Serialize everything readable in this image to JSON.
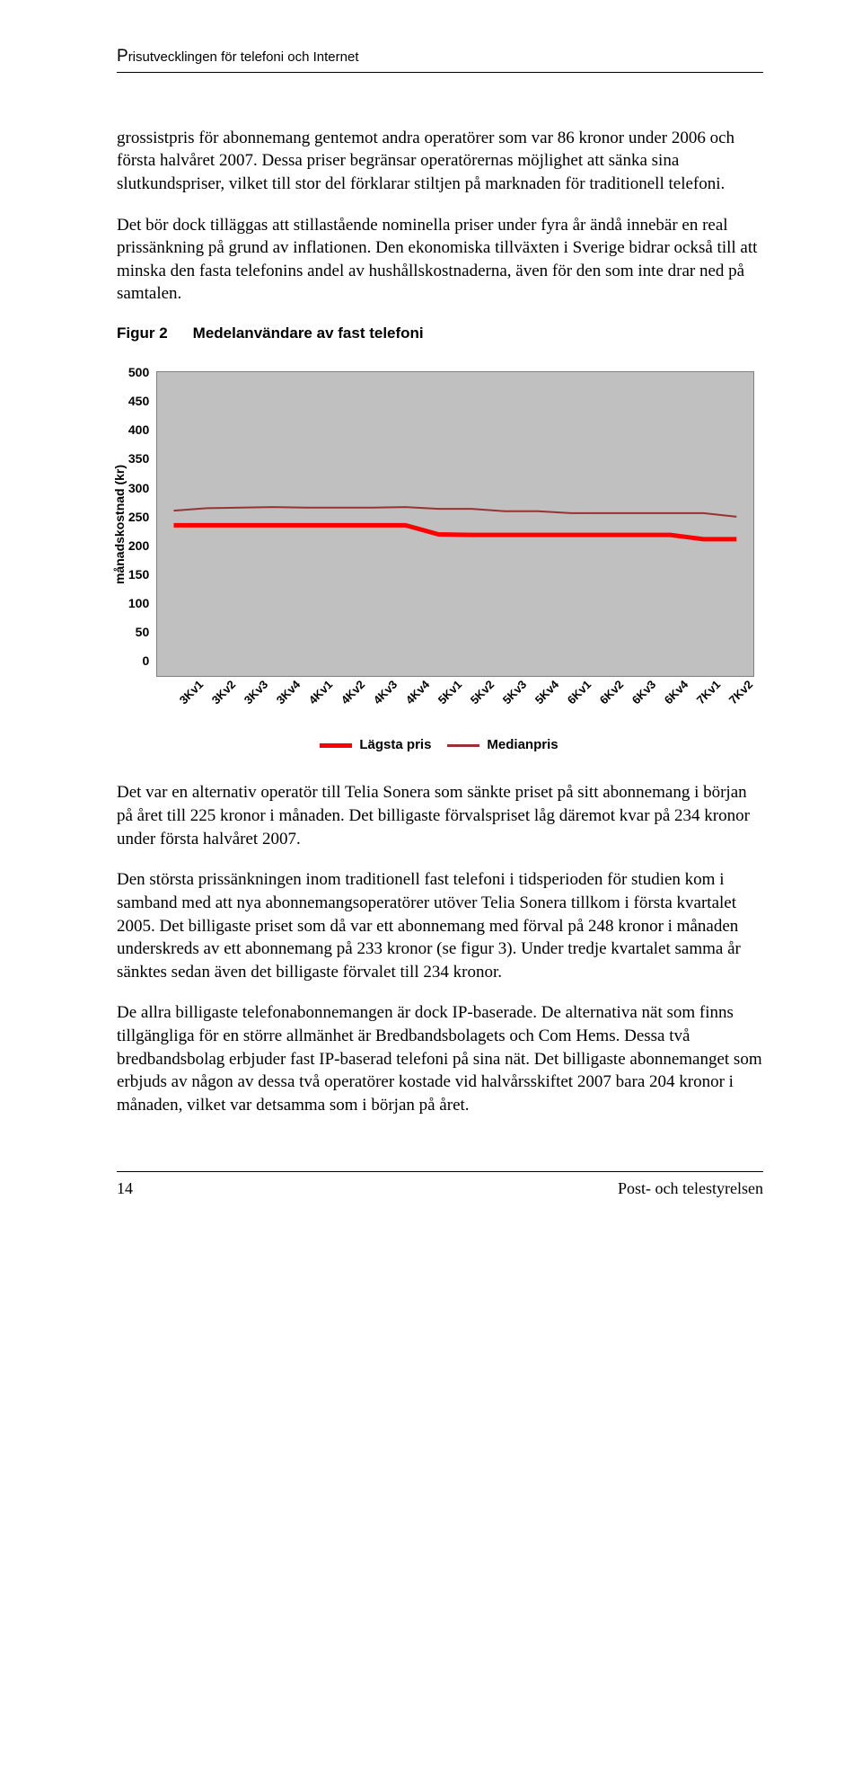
{
  "header": {
    "title_cap": "P",
    "title_rest": "risutvecklingen för telefoni och Internet"
  },
  "paragraphs": {
    "p1": "grossistpris för abonnemang gentemot andra operatörer som var 86 kronor under 2006 och första halvåret 2007. Dessa priser begränsar operatörernas möjlighet att sänka sina slutkundspriser, vilket till stor del förklarar stiltjen på marknaden för traditionell telefoni.",
    "p2": "Det bör dock tilläggas att stillastående nominella priser under fyra år ändå innebär en real prissänkning på grund av inflationen. Den ekonomiska tillväxten i Sverige bidrar också till att minska den fasta telefonins andel av hushållskostnaderna, även för den som inte drar ned på samtalen.",
    "p3": "Det var en alternativ operatör till Telia Sonera som sänkte priset på sitt abonnemang i början på året till 225 kronor i månaden. Det billigaste förvalspriset låg däremot kvar på 234 kronor under första halvåret 2007.",
    "p4": "Den största prissänkningen inom traditionell fast telefoni i tidsperioden för studien kom i samband med att nya abonnemangsoperatörer utöver Telia Sonera tillkom i första kvartalet 2005. Det billigaste priset som då var ett abonnemang med förval på 248 kronor i månaden underskreds av ett abonnemang på 233 kronor (se figur 3). Under tredje kvartalet samma år sänktes sedan även det billigaste förvalet till 234 kronor.",
    "p5": "De allra billigaste telefonabonnemangen är dock IP-baserade. De alternativa nät som finns tillgängliga för en större allmänhet är Bredbandsbolagets och Com Hems. Dessa två bredbandsbolag erbjuder fast IP-baserad telefoni på sina nät. Det billigaste abonnemanget som erbjuds av någon av dessa två operatörer kostade vid halvårsskiftet 2007 bara 204 kronor i månaden, vilket var detsamma som i början på året."
  },
  "figure": {
    "label": "Figur 2",
    "title": "Medelanvändare av fast telefoni"
  },
  "chart": {
    "type": "line",
    "background_color": "#c0c0c0",
    "plot_border_color": "#808080",
    "ylabel": "månadskostnad (kr)",
    "ylim": [
      0,
      500
    ],
    "ytick_step": 50,
    "yticks": [
      "500",
      "450",
      "400",
      "350",
      "300",
      "250",
      "200",
      "150",
      "100",
      "50",
      "0"
    ],
    "categories": [
      "3Kv1",
      "3Kv2",
      "3Kv3",
      "3Kv4",
      "4Kv1",
      "4Kv2",
      "4Kv3",
      "4Kv4",
      "5Kv1",
      "5Kv2",
      "5Kv3",
      "5Kv4",
      "6Kv1",
      "6Kv2",
      "6Kv3",
      "6Kv4",
      "7Kv1",
      "7Kv2"
    ],
    "series": [
      {
        "name": "Lägsta pris",
        "color": "#ff0000",
        "width": 5,
        "values": [
          248,
          248,
          248,
          248,
          248,
          248,
          248,
          248,
          233,
          232,
          232,
          232,
          232,
          232,
          232,
          232,
          225,
          225
        ]
      },
      {
        "name": "Medianpris",
        "color": "#993333",
        "width": 2,
        "values": [
          272,
          276,
          277,
          278,
          277,
          277,
          277,
          278,
          275,
          275,
          271,
          271,
          268,
          268,
          268,
          268,
          268,
          262
        ]
      }
    ],
    "legend_labels": [
      "Lägsta pris",
      "Medianpris"
    ]
  },
  "footer": {
    "page": "14",
    "org": "Post- och telestyrelsen"
  }
}
